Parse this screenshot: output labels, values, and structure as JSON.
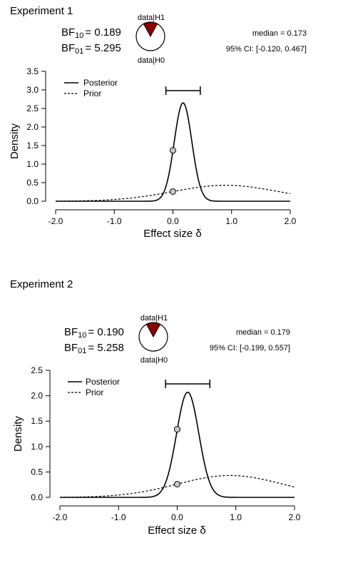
{
  "chart_data": [
    {
      "type": "line",
      "panel_title": "Experiment 1",
      "bf10_label": "BF",
      "bf10_sub": "10",
      "bf10_value": "= 0.189",
      "bf01_label": "BF",
      "bf01_sub": "01",
      "bf01_value": "= 5.295",
      "pie": {
        "top_label": "data|H1",
        "bottom_label": "data|H0",
        "h1_fraction": 0.159,
        "h1_color": "#8b0000"
      },
      "median_text": "median = 0.173",
      "ci_text": "95% CI: [-0.120, 0.467]",
      "ci": [
        -0.12,
        0.467
      ],
      "legend": [
        "Posterior",
        "Prior"
      ],
      "xlabel": "Effect size δ",
      "ylabel": "Density",
      "xlim": [
        -2.0,
        2.0
      ],
      "ylim": [
        0,
        3.5
      ],
      "xticks": [
        "-2.0",
        "-1.0",
        "0.0",
        "1.0",
        "2.0"
      ],
      "xtick_values": [
        -2.0,
        -1.0,
        0.0,
        1.0,
        2.0
      ],
      "yticks": [
        "0.0",
        "0.5",
        "1.0",
        "1.5",
        "2.0",
        "2.5",
        "3.0",
        "3.5"
      ],
      "ytick_values": [
        0,
        0.5,
        1.0,
        1.5,
        2.0,
        2.5,
        3.0,
        3.5
      ],
      "series": [
        {
          "name": "Posterior",
          "style": "solid",
          "mean": 0.173,
          "sd": 0.15,
          "peak": 2.65
        },
        {
          "name": "Prior",
          "style": "dashed",
          "mean": 0.9,
          "sd": 0.9,
          "peak": 0.43
        }
      ],
      "points": [
        {
          "x": 0,
          "y": 1.37
        },
        {
          "x": 0,
          "y": 0.26
        }
      ]
    },
    {
      "type": "line",
      "panel_title": "Experiment 2",
      "bf10_label": "BF",
      "bf10_sub": "10",
      "bf10_value": "= 0.190",
      "bf01_label": "BF",
      "bf01_sub": "01",
      "bf01_value": "= 5.258",
      "pie": {
        "top_label": "data|H1",
        "bottom_label": "data|H0",
        "h1_fraction": 0.16,
        "h1_color": "#8b0000"
      },
      "median_text": "median = 0.179",
      "ci_text": "95% CI: [-0.199, 0.557]",
      "ci": [
        -0.199,
        0.557
      ],
      "legend": [
        "Posterior",
        "Prior"
      ],
      "xlabel": "Effect size δ",
      "ylabel": "Density",
      "xlim": [
        -2.0,
        2.0
      ],
      "ylim": [
        0,
        2.5
      ],
      "xticks": [
        "-2.0",
        "-1.0",
        "0.0",
        "1.0",
        "2.0"
      ],
      "xtick_values": [
        -2.0,
        -1.0,
        0.0,
        1.0,
        2.0
      ],
      "yticks": [
        "0.0",
        "0.5",
        "1.0",
        "1.5",
        "2.0",
        "2.5"
      ],
      "ytick_values": [
        0,
        0.5,
        1.0,
        1.5,
        2.0,
        2.5
      ],
      "series": [
        {
          "name": "Posterior",
          "style": "solid",
          "mean": 0.179,
          "sd": 0.19,
          "peak": 2.07
        },
        {
          "name": "Prior",
          "style": "dashed",
          "mean": 0.9,
          "sd": 0.9,
          "peak": 0.43
        }
      ],
      "points": [
        {
          "x": 0,
          "y": 1.34
        },
        {
          "x": 0,
          "y": 0.26
        }
      ]
    }
  ]
}
